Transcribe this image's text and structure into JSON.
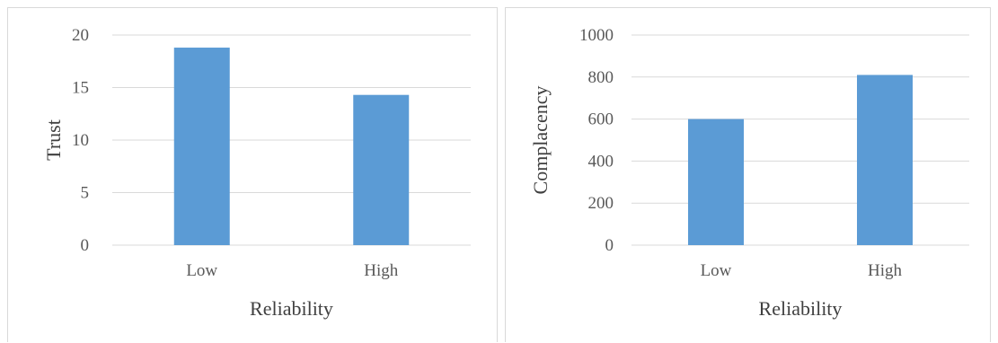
{
  "chart_data": [
    {
      "type": "bar",
      "categories": [
        "Low",
        "High"
      ],
      "values": [
        18.8,
        14.3
      ],
      "xlabel": "Reliability",
      "ylabel": "Trust",
      "ylim": [
        0,
        20
      ],
      "yticks": [
        0,
        5,
        10,
        15,
        20
      ],
      "grid": true,
      "bar_color": "#5b9bd5"
    },
    {
      "type": "bar",
      "categories": [
        "Low",
        "High"
      ],
      "values": [
        600,
        810
      ],
      "xlabel": "Reliability",
      "ylabel": "Complacency",
      "ylim": [
        0,
        1000
      ],
      "yticks": [
        0,
        200,
        400,
        600,
        800,
        1000
      ],
      "grid": true,
      "bar_color": "#5b9bd5"
    }
  ]
}
